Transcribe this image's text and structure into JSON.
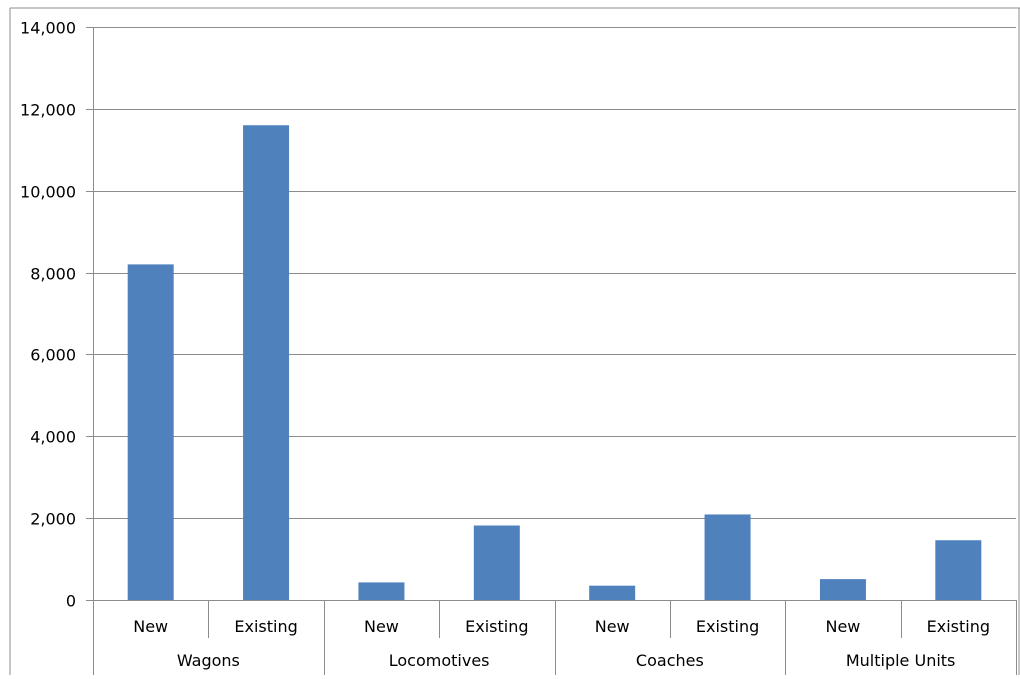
{
  "chart_data": {
    "type": "bar",
    "title": "",
    "xlabel": "",
    "ylabel": "",
    "ylim": [
      0,
      14000
    ],
    "yticks": [
      0,
      2000,
      4000,
      6000,
      8000,
      10000,
      12000,
      14000
    ],
    "ytick_labels": [
      "0",
      "2,000",
      "4,000",
      "6,000",
      "8,000",
      "10,000",
      "12,000",
      "14,000"
    ],
    "grid": true,
    "legend": "none",
    "bar_color": "#4f81bd",
    "groups": [
      {
        "label": "Wagons",
        "categories": [
          "New",
          "Existing"
        ],
        "values": [
          8200,
          11600
        ]
      },
      {
        "label": "Locomotives",
        "categories": [
          "New",
          "Existing"
        ],
        "values": [
          430,
          1820
        ]
      },
      {
        "label": "Coaches",
        "categories": [
          "New",
          "Existing"
        ],
        "values": [
          350,
          2090
        ]
      },
      {
        "label": "Multiple Units",
        "categories": [
          "New",
          "Existing"
        ],
        "values": [
          510,
          1460
        ]
      }
    ]
  }
}
